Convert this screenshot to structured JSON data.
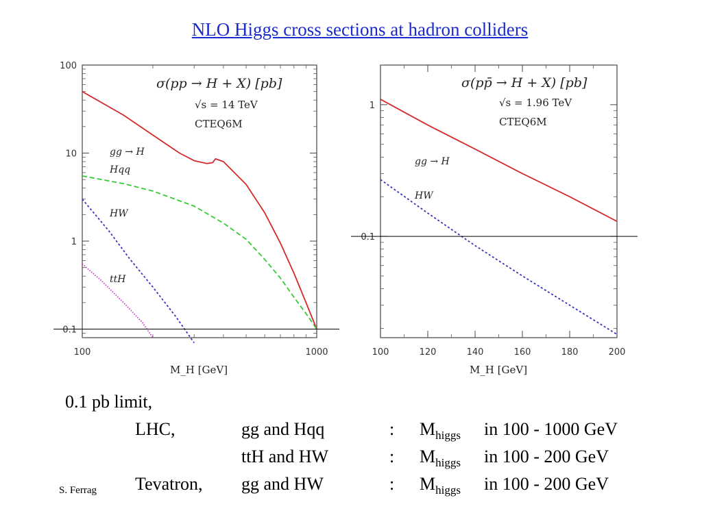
{
  "title": "NLO Higgs cross sections at hadron colliders",
  "colors": {
    "title": "#1a2bcc",
    "gg_H": "#d42a2a",
    "Hqq": "#33cc33",
    "HW": "#3333bb",
    "ttH": "#cc33cc"
  },
  "chart_data": [
    {
      "type": "line",
      "annotation_lines": [
        "σ(pp → H + X) [pb]",
        "√s = 14 TeV",
        "CTEQ6M"
      ],
      "xlabel": "M_H [GeV]",
      "xscale": "log",
      "yscale": "log",
      "xlim": [
        100,
        1000
      ],
      "ylim": [
        0.08,
        100
      ],
      "xticks": [
        "100",
        "1000"
      ],
      "yticks": [
        "100",
        "10",
        "1",
        "0.1"
      ],
      "hline": 0.1,
      "series": [
        {
          "name": "gg → H",
          "x": [
            100,
            150,
            200,
            260,
            300,
            340,
            360,
            370,
            400,
            500,
            600,
            700,
            800,
            900,
            1000
          ],
          "y": [
            50,
            27,
            16,
            10,
            8.2,
            7.6,
            7.8,
            8.6,
            8.0,
            4.4,
            2.1,
            0.95,
            0.43,
            0.2,
            0.1
          ]
        },
        {
          "name": "Hqq",
          "x": [
            100,
            150,
            200,
            300,
            400,
            500,
            600,
            700,
            800,
            900,
            1000
          ],
          "y": [
            5.5,
            4.5,
            3.7,
            2.5,
            1.6,
            1.05,
            0.62,
            0.38,
            0.23,
            0.15,
            0.1
          ]
        },
        {
          "name": "HW",
          "x": [
            100,
            130,
            160,
            200,
            250,
            300
          ],
          "y": [
            3.0,
            1.3,
            0.62,
            0.3,
            0.14,
            0.07
          ]
        },
        {
          "name": "ttH",
          "x": [
            100,
            120,
            150,
            180,
            200
          ],
          "y": [
            0.55,
            0.36,
            0.2,
            0.12,
            0.08
          ]
        }
      ]
    },
    {
      "type": "line",
      "annotation_lines": [
        "σ(pp̄ → H + X) [pb]",
        "√s = 1.96 TeV",
        "CTEQ6M"
      ],
      "xlabel": "M_H [GeV]",
      "xscale": "linear",
      "yscale": "log",
      "xlim": [
        100,
        200
      ],
      "ylim": [
        0.017,
        2
      ],
      "xticks": [
        "100",
        "120",
        "140",
        "160",
        "180",
        "200"
      ],
      "yticks": [
        "1",
        "0.1"
      ],
      "hline": 0.1,
      "series": [
        {
          "name": "gg → H",
          "x": [
            100,
            120,
            140,
            160,
            180,
            200
          ],
          "y": [
            1.1,
            0.7,
            0.46,
            0.3,
            0.2,
            0.13
          ]
        },
        {
          "name": "HW",
          "x": [
            100,
            120,
            140,
            160,
            180,
            200
          ],
          "y": [
            0.27,
            0.15,
            0.085,
            0.05,
            0.03,
            0.018
          ]
        }
      ]
    }
  ],
  "notes": {
    "line1": "0.1 pb limit,",
    "lhc": "LHC,",
    "lhc_proc1": "gg  and  Hqq",
    "colon": ":",
    "m": "M",
    "higgs": "higgs",
    "lhc_range1": "in  100 - 1000 GeV",
    "lhc_proc2": "ttH  and  HW",
    "lhc_range2": "in   100 - 200   GeV",
    "tevatron": "Tevatron,",
    "tev_proc": "gg and  HW",
    "tev_range": "in  100 - 200 GeV"
  },
  "author": "S. Ferrag"
}
